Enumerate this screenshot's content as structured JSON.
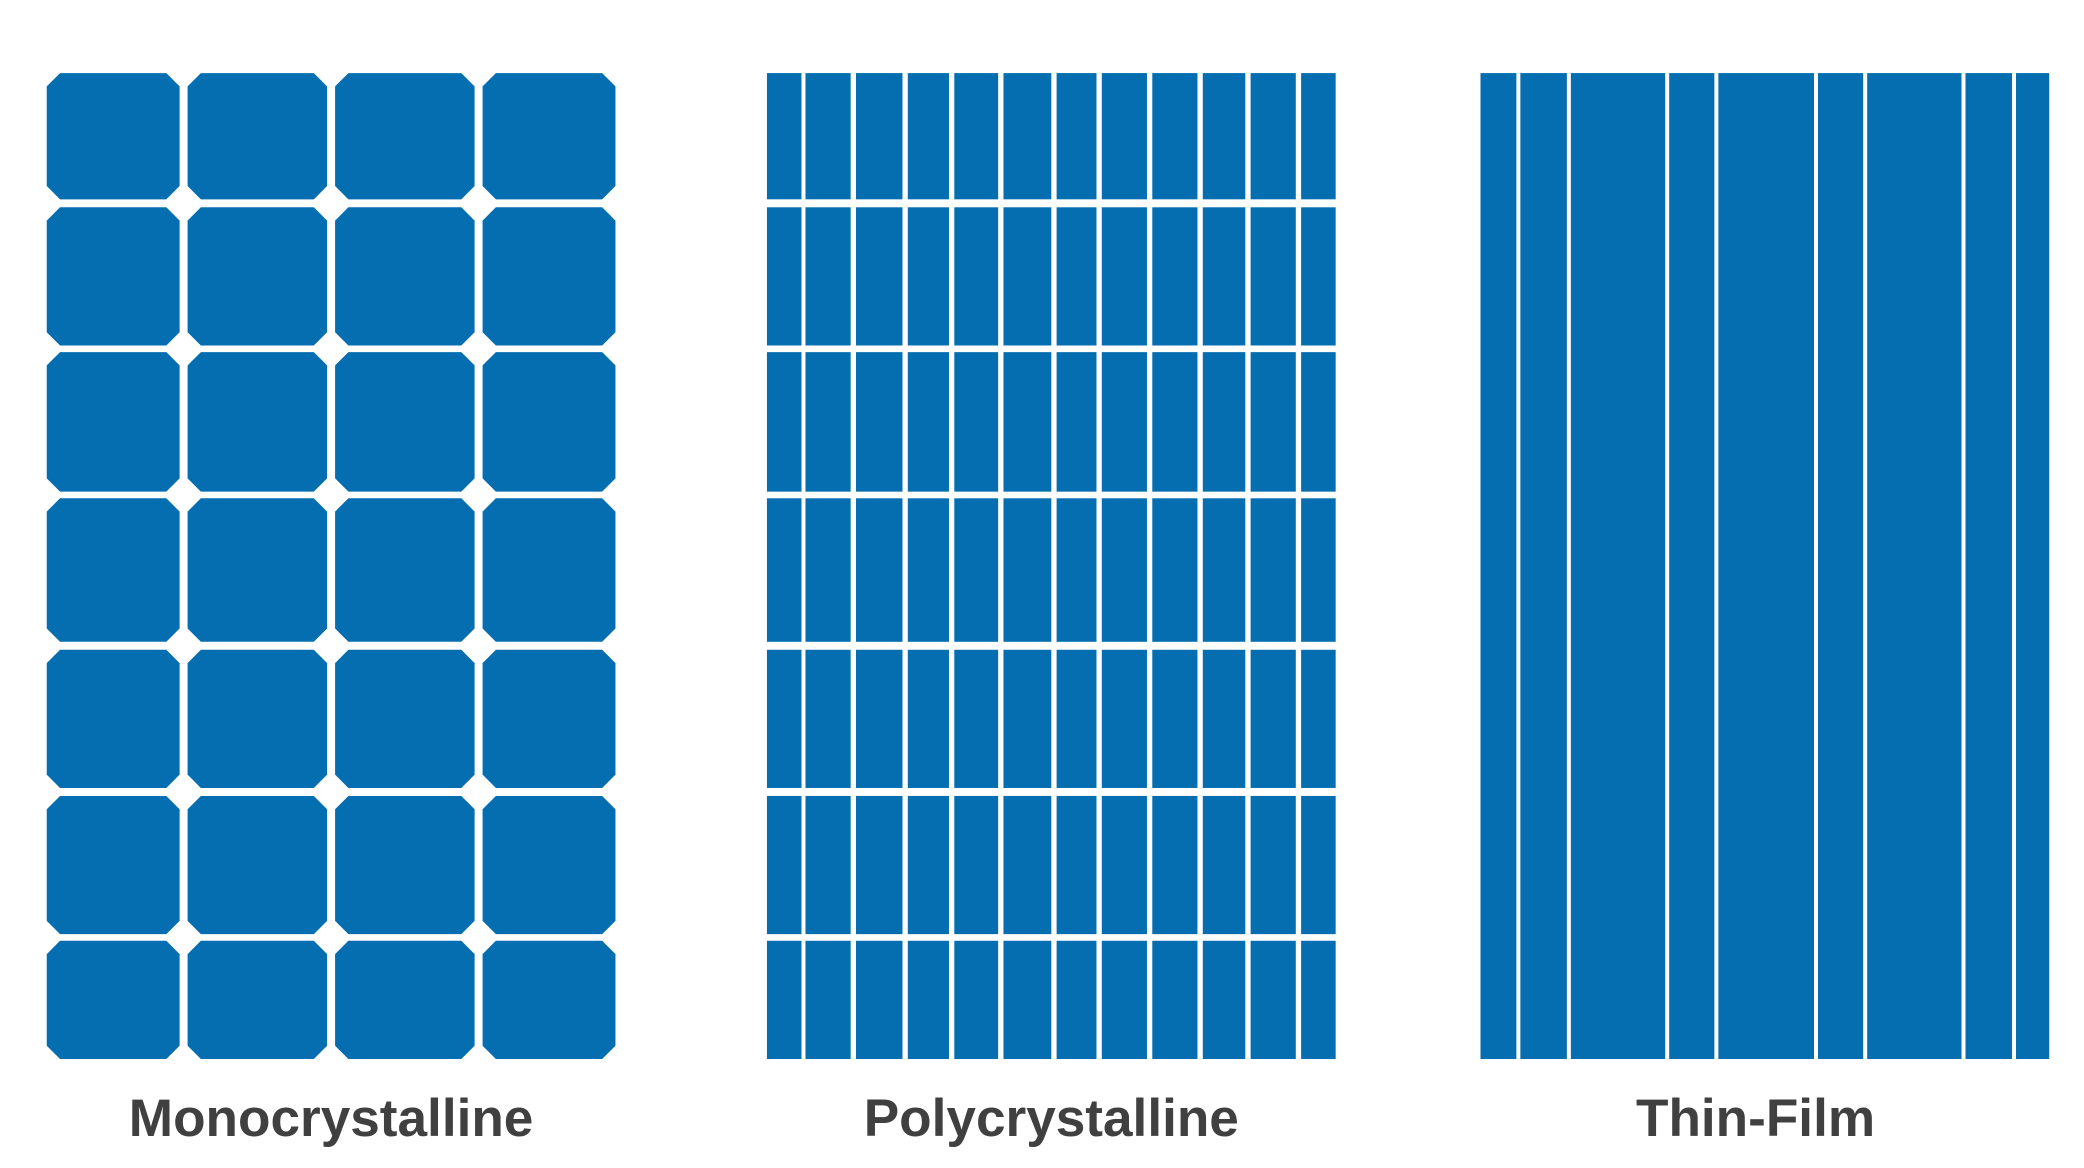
{
  "panels": [
    {
      "label": "Monocrystalline"
    },
    {
      "label": "Polycrystalline"
    },
    {
      "label": "Thin-Film"
    }
  ]
}
